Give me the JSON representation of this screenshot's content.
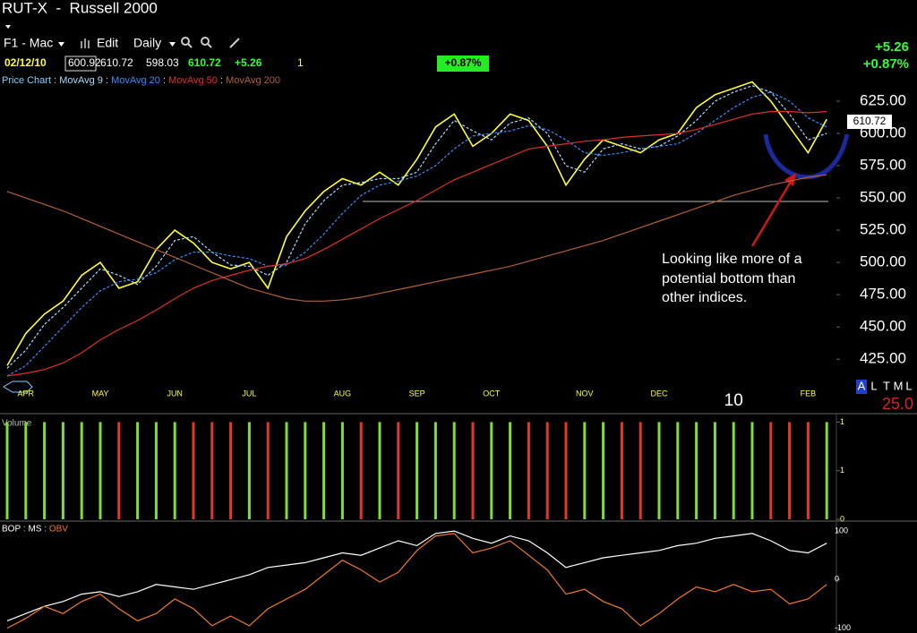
{
  "header": {
    "title": "RUT-X  -  Russell 2000"
  },
  "toolbar": {
    "layout": "F1 - Mac",
    "edit": "Edit",
    "period": "Daily"
  },
  "quote": {
    "date": "02/12/10",
    "open": "600.92",
    "high": "610.72",
    "low": "598.03",
    "last": "610.72",
    "change": "+5.26",
    "volume": "1",
    "percent": "+0.87%"
  },
  "summary": {
    "change": "+5.26",
    "percent": "+0.87%"
  },
  "annotation": {
    "lines": [
      "Looking like more of a",
      "potential bottom than",
      "other indices."
    ]
  },
  "scale_buttons": [
    "A",
    "L",
    "T",
    "M",
    "L"
  ],
  "zoom_value": "25.0",
  "chart_data": [
    {
      "type": "line",
      "legend_separator": " : ",
      "categories": [
        null,
        "APR",
        null,
        null,
        null,
        "MAY",
        null,
        null,
        null,
        "JUN",
        null,
        null,
        null,
        "JUL",
        null,
        null,
        null,
        null,
        "AUG",
        null,
        null,
        null,
        "SEP",
        null,
        null,
        null,
        "OCT",
        null,
        null,
        null,
        null,
        "NOV",
        null,
        null,
        null,
        "DEC",
        null,
        null,
        null,
        "10",
        null,
        null,
        null,
        "FEB",
        null
      ],
      "series": [
        {
          "name": "Price Chart",
          "color": "#ffff33",
          "label_color": "#7fd3ff",
          "values": [
            420,
            445,
            460,
            470,
            490,
            500,
            480,
            485,
            510,
            525,
            515,
            500,
            495,
            500,
            480,
            520,
            540,
            555,
            565,
            560,
            570,
            560,
            580,
            605,
            615,
            590,
            600,
            615,
            610,
            590,
            560,
            580,
            595,
            590,
            585,
            595,
            600,
            620,
            630,
            635,
            640,
            625,
            605,
            585,
            611
          ]
        },
        {
          "name": "MovAvg 9",
          "color": "#a8dcff",
          "label_color": "#a8dcff",
          "dashed": true,
          "values": [
            418,
            432,
            452,
            465,
            480,
            495,
            490,
            483,
            497,
            517,
            520,
            508,
            498,
            497,
            490,
            500,
            530,
            548,
            560,
            562,
            565,
            565,
            570,
            592,
            610,
            602,
            595,
            608,
            612,
            600,
            575,
            570,
            588,
            592,
            588,
            590,
            598,
            610,
            625,
            632,
            637,
            632,
            615,
            595,
            600
          ]
        },
        {
          "name": "MovAvg 20",
          "color": "#3b8cff",
          "label_color": "#3b8cff",
          "dashed": true,
          "values": [
            412,
            420,
            435,
            450,
            465,
            478,
            485,
            487,
            492,
            502,
            508,
            508,
            505,
            503,
            497,
            498,
            508,
            522,
            538,
            552,
            560,
            563,
            567,
            575,
            588,
            598,
            600,
            602,
            606,
            603,
            595,
            585,
            583,
            585,
            588,
            590,
            592,
            600,
            610,
            620,
            628,
            632,
            625,
            612,
            605
          ]
        },
        {
          "name": "MovAvg 50",
          "color": "#e0302b",
          "label_color": "#e0302b",
          "values": [
            412,
            414,
            417,
            422,
            430,
            440,
            448,
            455,
            463,
            472,
            480,
            486,
            490,
            494,
            497,
            499,
            503,
            510,
            518,
            526,
            534,
            541,
            548,
            556,
            564,
            570,
            576,
            582,
            588,
            590,
            592,
            594,
            595,
            597,
            598,
            599,
            600,
            603,
            607,
            611,
            615,
            617,
            617,
            616,
            617
          ]
        },
        {
          "name": "MovAvg 200",
          "color": "#b0603a",
          "label_color": "#b0603a",
          "values": [
            555,
            550,
            545,
            540,
            534,
            528,
            522,
            516,
            510,
            504,
            498,
            492,
            486,
            480,
            476,
            472,
            470,
            470,
            471,
            473,
            476,
            479,
            482,
            485,
            488,
            491,
            494,
            497,
            501,
            505,
            509,
            513,
            517,
            522,
            527,
            532,
            537,
            542,
            547,
            552,
            556,
            560,
            563,
            566,
            568
          ]
        }
      ],
      "ylim": [
        405,
        637.5
      ],
      "yticks": [
        {
          "value": 625,
          "label": "625.00"
        },
        {
          "value": 600,
          "label": "600.00"
        },
        {
          "value": 575,
          "label": "575.00"
        },
        {
          "value": 550,
          "label": "550.00"
        },
        {
          "value": 525,
          "label": "525.00"
        },
        {
          "value": 500,
          "label": "500.00"
        },
        {
          "value": 475,
          "label": "475.00"
        },
        {
          "value": 450,
          "label": "450.00"
        },
        {
          "value": 425,
          "label": "425.00"
        }
      ]
    },
    {
      "type": "bar",
      "title": "Volume",
      "values": [
        1,
        1,
        1,
        1,
        1,
        1,
        1,
        1,
        1,
        1,
        1,
        1,
        1,
        1,
        1,
        1,
        1,
        1,
        1,
        1,
        1,
        1,
        1,
        1,
        1,
        1,
        1,
        1,
        1,
        1,
        1,
        1,
        1,
        1,
        1,
        1,
        1,
        1,
        1,
        1,
        1,
        1,
        1,
        1,
        1
      ],
      "colors": [
        "#7fdd3a",
        "#7fdd3a",
        "#7fdd3a",
        "#7fdd3a",
        "#7fdd3a",
        "#7fdd3a",
        "#e23a2a",
        "#7fdd3a",
        "#7fdd3a",
        "#7fdd3a",
        "#e23a2a",
        "#e23a2a",
        "#e23a2a",
        "#7fdd3a",
        "#e23a2a",
        "#7fdd3a",
        "#7fdd3a",
        "#7fdd3a",
        "#7fdd3a",
        "#e23a2a",
        "#7fdd3a",
        "#e23a2a",
        "#7fdd3a",
        "#7fdd3a",
        "#7fdd3a",
        "#e23a2a",
        "#7fdd3a",
        "#7fdd3a",
        "#e23a2a",
        "#e23a2a",
        "#e23a2a",
        "#7fdd3a",
        "#7fdd3a",
        "#e23a2a",
        "#e23a2a",
        "#7fdd3a",
        "#7fdd3a",
        "#7fdd3a",
        "#7fdd3a",
        "#7fdd3a",
        "#7fdd3a",
        "#e23a2a",
        "#e23a2a",
        "#e23a2a",
        "#7fdd3a"
      ],
      "ylim": [
        0,
        1.05
      ],
      "yticks": [
        {
          "value": 1,
          "label": "1"
        },
        {
          "value": 0.5,
          "label": "1"
        },
        {
          "value": 0,
          "label": "0"
        }
      ]
    },
    {
      "type": "line",
      "title": "BOP",
      "legend_separator": " : ",
      "series": [
        {
          "name": "MS",
          "color": "#ffffff",
          "label_color": "#ffffff",
          "values": [
            -85,
            -70,
            -55,
            -45,
            -30,
            -25,
            -35,
            -25,
            -10,
            -15,
            -20,
            -10,
            0,
            10,
            25,
            30,
            35,
            45,
            55,
            50,
            65,
            80,
            70,
            95,
            100,
            85,
            75,
            90,
            80,
            55,
            25,
            35,
            45,
            50,
            55,
            60,
            70,
            75,
            85,
            90,
            95,
            80,
            60,
            55,
            75
          ]
        },
        {
          "name": "OBV",
          "color": "#f07a2a",
          "label_color": "#f07a2a",
          "values": [
            -100,
            -80,
            -55,
            -70,
            -45,
            -30,
            -60,
            -85,
            -70,
            -40,
            -60,
            -95,
            -75,
            -95,
            -60,
            -40,
            -20,
            10,
            40,
            20,
            -5,
            15,
            60,
            90,
            95,
            55,
            65,
            80,
            50,
            20,
            -30,
            -20,
            -45,
            -60,
            -95,
            -70,
            -40,
            -15,
            -25,
            -10,
            -25,
            -20,
            -50,
            -40,
            -10
          ]
        }
      ],
      "ylim": [
        -110,
        115
      ],
      "yticks": [
        100,
        0,
        -100
      ]
    }
  ]
}
